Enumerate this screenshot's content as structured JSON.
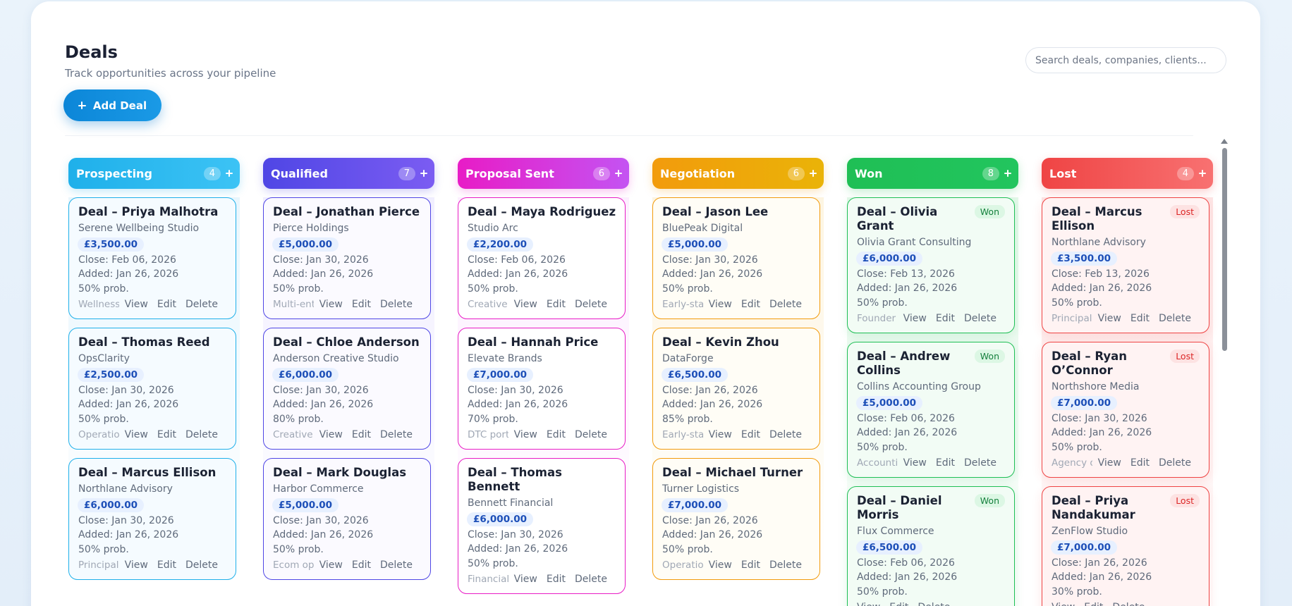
{
  "header": {
    "title": "Deals",
    "subtitle": "Track opportunities across your pipeline",
    "add_button": "Add Deal",
    "search_placeholder": "Search deals, companies, clients..."
  },
  "actions": [
    "View",
    "Edit",
    "Delete"
  ],
  "columns": [
    {
      "name": "Prospecting",
      "count": 4,
      "color": "#1fb0ea",
      "color2": "#3cc3f5",
      "theme": "blue",
      "cards": [
        {
          "title": "Deal – Priya Malhotra",
          "company": "Serene Wellbeing Studio",
          "amount": "£3,500.00",
          "close": "Close: Feb 06, 2026",
          "added": "Added: Jan 26, 2026",
          "prob": "50% prob.",
          "note": "Wellness ..."
        },
        {
          "title": "Deal – Thomas Reed",
          "company": "OpsClarity",
          "amount": "£2,500.00",
          "close": "Close: Jan 30, 2026",
          "added": "Added: Jan 26, 2026",
          "prob": "50% prob.",
          "note": "Operation..."
        },
        {
          "title": "Deal – Marcus Ellison",
          "company": "Northlane Advisory",
          "amount": "£6,000.00",
          "close": "Close: Jan 30, 2026",
          "added": "Added: Jan 26, 2026",
          "prob": "50% prob.",
          "note": "Principal ..."
        }
      ]
    },
    {
      "name": "Qualified",
      "count": 7,
      "color": "#4f46e5",
      "color2": "#7b5cf2",
      "theme": "violet",
      "cards": [
        {
          "title": "Deal – Jonathan Pierce",
          "company": "Pierce Holdings",
          "amount": "£5,000.00",
          "close": "Close: Jan 30, 2026",
          "added": "Added: Jan 26, 2026",
          "prob": "50% prob.",
          "note": "Multi-enti..."
        },
        {
          "title": "Deal – Chloe Anderson",
          "company": "Anderson Creative Studio",
          "amount": "£6,000.00",
          "close": "Close: Jan 30, 2026",
          "added": "Added: Jan 26, 2026",
          "prob": "80% prob.",
          "note": "Creative ..."
        },
        {
          "title": "Deal – Mark Douglas",
          "company": "Harbor Commerce",
          "amount": "£5,000.00",
          "close": "Close: Jan 30, 2026",
          "added": "Added: Jan 26, 2026",
          "prob": "50% prob.",
          "note": "Ecom ope..."
        }
      ]
    },
    {
      "name": "Proposal Sent",
      "count": 6,
      "color": "#e81cc6",
      "color2": "#c453f2",
      "theme": "pink",
      "cards": [
        {
          "title": "Deal – Maya Rodriguez",
          "company": "Studio Arc",
          "amount": "£2,200.00",
          "close": "Close: Feb 06, 2026",
          "added": "Added: Jan 26, 2026",
          "prob": "50% prob.",
          "note": "Creative ..."
        },
        {
          "title": "Deal – Hannah Price",
          "company": "Elevate Brands",
          "amount": "£7,000.00",
          "close": "Close: Jan 30, 2026",
          "added": "Added: Jan 26, 2026",
          "prob": "70% prob.",
          "note": "DTC portf..."
        },
        {
          "title": "Deal – Thomas Bennett",
          "company": "Bennett Financial",
          "amount": "£6,000.00",
          "close": "Close: Jan 30, 2026",
          "added": "Added: Jan 26, 2026",
          "prob": "50% prob.",
          "note": "Financial ..."
        }
      ]
    },
    {
      "name": "Negotiation",
      "count": 6,
      "color": "#f29b0c",
      "color2": "#eab308",
      "theme": "amber",
      "cards": [
        {
          "title": "Deal – Jason Lee",
          "company": "BluePeak Digital",
          "amount": "£5,000.00",
          "close": "Close: Jan 30, 2026",
          "added": "Added: Jan 26, 2026",
          "prob": "50% prob.",
          "note": "Early-sta..."
        },
        {
          "title": "Deal – Kevin Zhou",
          "company": "DataForge",
          "amount": "£6,500.00",
          "close": "Close: Jan 26, 2026",
          "added": "Added: Jan 26, 2026",
          "prob": "85% prob.",
          "note": "Early-sta..."
        },
        {
          "title": "Deal – Michael Turner",
          "company": "Turner Logistics",
          "amount": "£7,000.00",
          "close": "Close: Jan 26, 2026",
          "added": "Added: Jan 26, 2026",
          "prob": "50% prob.",
          "note": "Operation..."
        }
      ]
    },
    {
      "name": "Won",
      "count": 8,
      "color": "#1fbf55",
      "color2": "#22c55e",
      "theme": "green",
      "cards": [
        {
          "title": "Deal – Olivia Grant",
          "badge": "Won",
          "company": "Olivia Grant Consulting",
          "amount": "£6,000.00",
          "close": "Close: Feb 13, 2026",
          "added": "Added: Jan 26, 2026",
          "prob": "50% prob.",
          "note": "Founder b..."
        },
        {
          "title": "Deal – Andrew Collins",
          "badge": "Won",
          "company": "Collins Accounting Group",
          "amount": "£5,000.00",
          "close": "Close: Feb 06, 2026",
          "added": "Added: Jan 26, 2026",
          "prob": "50% prob.",
          "note": "Accountin..."
        },
        {
          "title": "Deal – Daniel Morris",
          "badge": "Won",
          "company": "Flux Commerce",
          "amount": "£6,500.00",
          "close": "Close: Feb 06, 2026",
          "added": "Added: Jan 26, 2026",
          "prob": "50% prob."
        }
      ]
    },
    {
      "name": "Lost",
      "count": 4,
      "color": "#ef4444",
      "color2": "#f87171",
      "theme": "red",
      "cards": [
        {
          "title": "Deal – Marcus Ellison",
          "badge": "Lost",
          "company": "Northlane Advisory",
          "amount": "£3,500.00",
          "close": "Close: Feb 13, 2026",
          "added": "Added: Jan 26, 2026",
          "prob": "50% prob.",
          "note": "Principal ..."
        },
        {
          "title": "Deal – Ryan O’Connor",
          "badge": "Lost",
          "company": "Northshore Media",
          "amount": "£7,000.00",
          "close": "Close: Jan 30, 2026",
          "added": "Added: Jan 26, 2026",
          "prob": "50% prob.",
          "note": "Agency o..."
        },
        {
          "title": "Deal – Priya Nandakumar",
          "badge": "Lost",
          "company": "ZenFlow Studio",
          "amount": "£7,000.00",
          "close": "Close: Jan 26, 2026",
          "added": "Added: Jan 26, 2026",
          "prob": "30% prob."
        }
      ]
    }
  ]
}
